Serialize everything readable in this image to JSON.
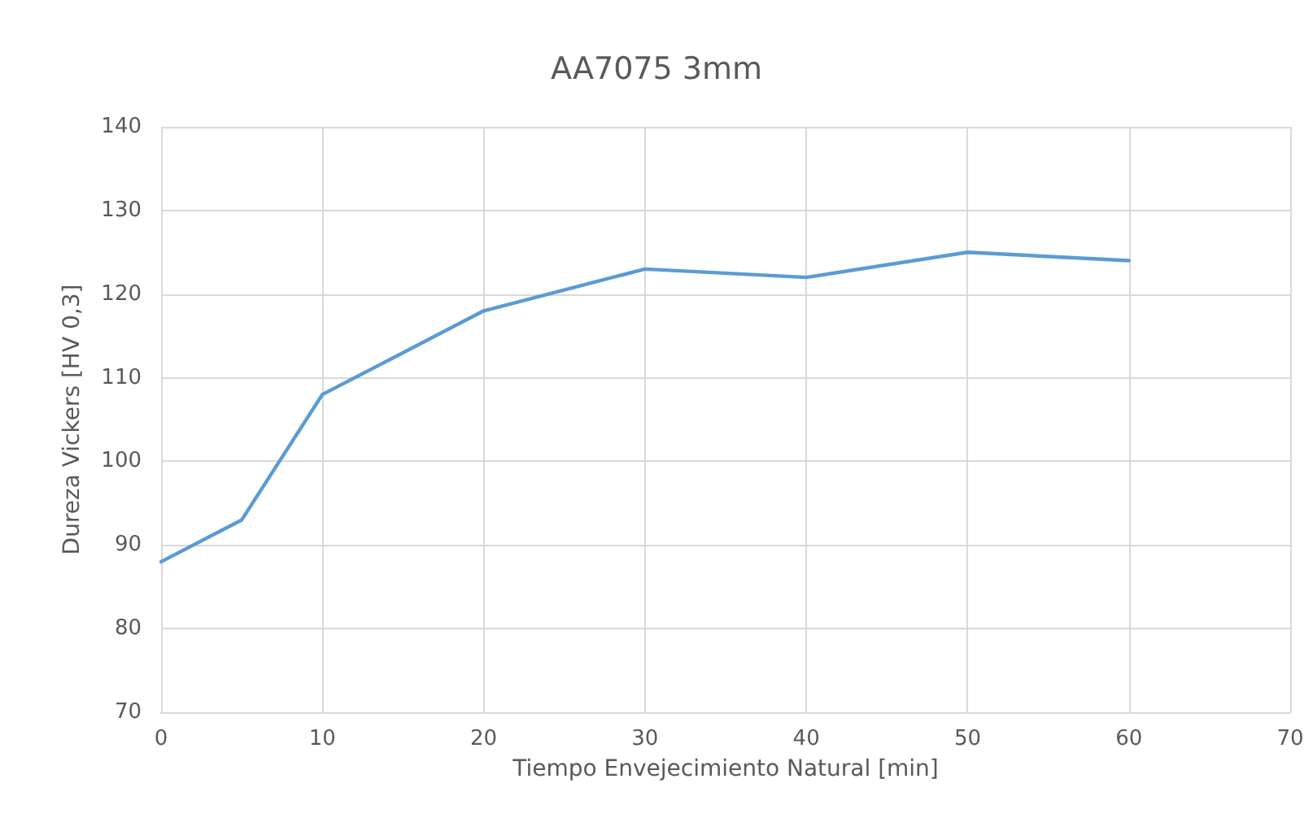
{
  "chart_data": {
    "type": "line",
    "title": "AA7075 3mm",
    "xlabel": "Tiempo Envejecimiento Natural [min]",
    "ylabel": "Dureza Vickers [HV 0,3]",
    "x": [
      0,
      5,
      10,
      20,
      30,
      40,
      50,
      60
    ],
    "series": [
      {
        "color": "#5b9bd5",
        "values": [
          88,
          93,
          108,
          118,
          123,
          122,
          125,
          124
        ]
      }
    ],
    "xlim": [
      0,
      70
    ],
    "xticks": [
      0,
      10,
      20,
      30,
      40,
      50,
      60,
      70
    ],
    "ylim": [
      70,
      140
    ],
    "yticks": [
      70,
      80,
      90,
      100,
      110,
      120,
      130,
      140
    ],
    "grid": true,
    "marker": "none",
    "line_style": "solid"
  }
}
